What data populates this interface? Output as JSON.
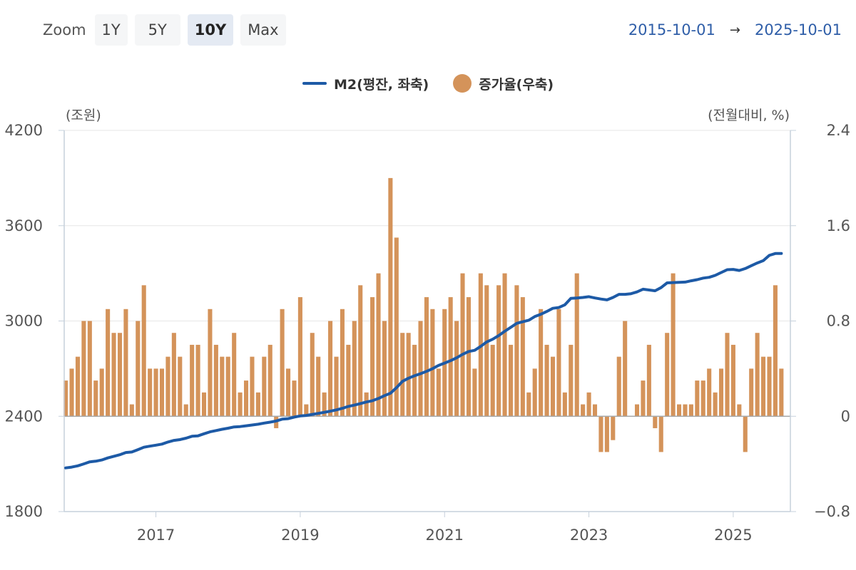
{
  "toolbar": {
    "zoom_label": "Zoom",
    "buttons": [
      {
        "label": "1Y",
        "active": false
      },
      {
        "label": "5Y",
        "active": false
      },
      {
        "label": "10Y",
        "active": true
      },
      {
        "label": "Max",
        "active": false
      }
    ]
  },
  "date_range": {
    "start": "2015-10-01",
    "arrow": "→",
    "end": "2025-10-01"
  },
  "chart_data": {
    "type": "bar+line",
    "colors": {
      "line": "#1d5aa6",
      "bar": "#d4935a",
      "zero_line": "#a7a7a7",
      "axis": "#c6d0dc",
      "grid": "#e6e6e6"
    },
    "legend_position": "top",
    "left_axis": {
      "unit_label": "(조원)",
      "ticks": [
        4200,
        3600,
        3000,
        2400,
        1800
      ],
      "range": [
        1800,
        4200
      ]
    },
    "right_axis": {
      "unit_label": "(전월대비, %)",
      "ticks": [
        "2.4",
        "1.6",
        "0.8",
        "0",
        "−0.8"
      ],
      "range": [
        -0.8,
        2.4
      ]
    },
    "x_ticks": [
      "2017",
      "2019",
      "2021",
      "2023",
      "2025"
    ],
    "x_tick_values": [
      "2017-01",
      "2019-01",
      "2021-01",
      "2023-01",
      "2025-01"
    ],
    "months": [
      "2015-10",
      "2015-11",
      "2015-12",
      "2016-01",
      "2016-02",
      "2016-03",
      "2016-04",
      "2016-05",
      "2016-06",
      "2016-07",
      "2016-08",
      "2016-09",
      "2016-10",
      "2016-11",
      "2016-12",
      "2017-01",
      "2017-02",
      "2017-03",
      "2017-04",
      "2017-05",
      "2017-06",
      "2017-07",
      "2017-08",
      "2017-09",
      "2017-10",
      "2017-11",
      "2017-12",
      "2018-01",
      "2018-02",
      "2018-03",
      "2018-04",
      "2018-05",
      "2018-06",
      "2018-07",
      "2018-08",
      "2018-09",
      "2018-10",
      "2018-11",
      "2018-12",
      "2019-01",
      "2019-02",
      "2019-03",
      "2019-04",
      "2019-05",
      "2019-06",
      "2019-07",
      "2019-08",
      "2019-09",
      "2019-10",
      "2019-11",
      "2019-12",
      "2020-01",
      "2020-02",
      "2020-03",
      "2020-04",
      "2020-05",
      "2020-06",
      "2020-07",
      "2020-08",
      "2020-09",
      "2020-10",
      "2020-11",
      "2020-12",
      "2021-01",
      "2021-02",
      "2021-03",
      "2021-04",
      "2021-05",
      "2021-06",
      "2021-07",
      "2021-08",
      "2021-09",
      "2021-10",
      "2021-11",
      "2021-12",
      "2022-01",
      "2022-02",
      "2022-03",
      "2022-04",
      "2022-05",
      "2022-06",
      "2022-07",
      "2022-08",
      "2022-09",
      "2022-10",
      "2022-11",
      "2022-12",
      "2023-01",
      "2023-02",
      "2023-03",
      "2023-04",
      "2023-05",
      "2023-06",
      "2023-07",
      "2023-08",
      "2023-09",
      "2023-10",
      "2023-11",
      "2023-12",
      "2024-01",
      "2024-02",
      "2024-03",
      "2024-04",
      "2024-05",
      "2024-06",
      "2024-07",
      "2024-08",
      "2024-09",
      "2024-10",
      "2024-11",
      "2024-12",
      "2025-01",
      "2025-02",
      "2025-03",
      "2025-04",
      "2025-05",
      "2025-06",
      "2025-07",
      "2025-08",
      "2025-09",
      "2025-10"
    ],
    "series": [
      {
        "name": "M2(평잔, 좌축)",
        "axis": "left",
        "type": "line",
        "values": [
          2075,
          2080,
          2088,
          2100,
          2113,
          2117,
          2125,
          2138,
          2148,
          2158,
          2172,
          2175,
          2190,
          2205,
          2212,
          2218,
          2225,
          2238,
          2248,
          2253,
          2262,
          2274,
          2277,
          2290,
          2302,
          2310,
          2318,
          2325,
          2333,
          2335,
          2340,
          2345,
          2350,
          2357,
          2363,
          2370,
          2382,
          2385,
          2395,
          2402,
          2405,
          2412,
          2418,
          2425,
          2432,
          2440,
          2450,
          2462,
          2470,
          2480,
          2490,
          2498,
          2512,
          2530,
          2545,
          2580,
          2620,
          2640,
          2655,
          2668,
          2683,
          2700,
          2720,
          2735,
          2750,
          2768,
          2790,
          2808,
          2815,
          2840,
          2868,
          2885,
          2908,
          2935,
          2960,
          2985,
          2995,
          3005,
          3028,
          3042,
          3060,
          3080,
          3085,
          3102,
          3142,
          3145,
          3148,
          3153,
          3145,
          3138,
          3133,
          3148,
          3168,
          3168,
          3172,
          3183,
          3200,
          3195,
          3190,
          3210,
          3240,
          3242,
          3243,
          3245,
          3253,
          3260,
          3270,
          3275,
          3287,
          3305,
          3323,
          3325,
          3318,
          3330,
          3348,
          3365,
          3380,
          3413,
          3425,
          3425
        ]
      },
      {
        "name": "증가율(우축)",
        "axis": "right",
        "type": "bar",
        "values": [
          0.3,
          0.4,
          0.5,
          0.8,
          0.8,
          0.3,
          0.4,
          0.9,
          0.7,
          0.7,
          0.9,
          0.1,
          0.8,
          1.1,
          0.4,
          0.4,
          0.4,
          0.5,
          0.7,
          0.5,
          0.1,
          0.6,
          0.6,
          0.2,
          0.9,
          0.6,
          0.5,
          0.5,
          0.7,
          0.2,
          0.3,
          0.5,
          0.2,
          0.5,
          0.6,
          -0.1,
          0.9,
          0.4,
          0.3,
          1.0,
          0.1,
          0.7,
          0.5,
          0.2,
          0.8,
          0.5,
          0.9,
          0.6,
          0.8,
          1.1,
          0.2,
          1.0,
          1.2,
          0.8,
          2.0,
          1.5,
          0.7,
          0.7,
          0.6,
          0.8,
          1.0,
          0.9,
          0.4,
          0.9,
          1.0,
          0.8,
          1.2,
          1.0,
          0.4,
          1.2,
          1.1,
          0.6,
          1.1,
          1.2,
          0.6,
          1.1,
          1.0,
          0.2,
          0.4,
          0.9,
          0.6,
          0.5,
          0.9,
          0.2,
          0.6,
          1.2,
          0.1,
          0.2,
          0.1,
          -0.3,
          -0.3,
          -0.2,
          0.5,
          0.8,
          0.0,
          0.1,
          0.3,
          0.6,
          -0.1,
          -0.3,
          0.7,
          1.2,
          0.1,
          0.1,
          0.1,
          0.3,
          0.3,
          0.4,
          0.2,
          0.4,
          0.7,
          0.6,
          0.1,
          -0.3,
          0.4,
          0.7,
          0.5,
          0.5,
          1.1,
          0.4
        ]
      }
    ]
  }
}
